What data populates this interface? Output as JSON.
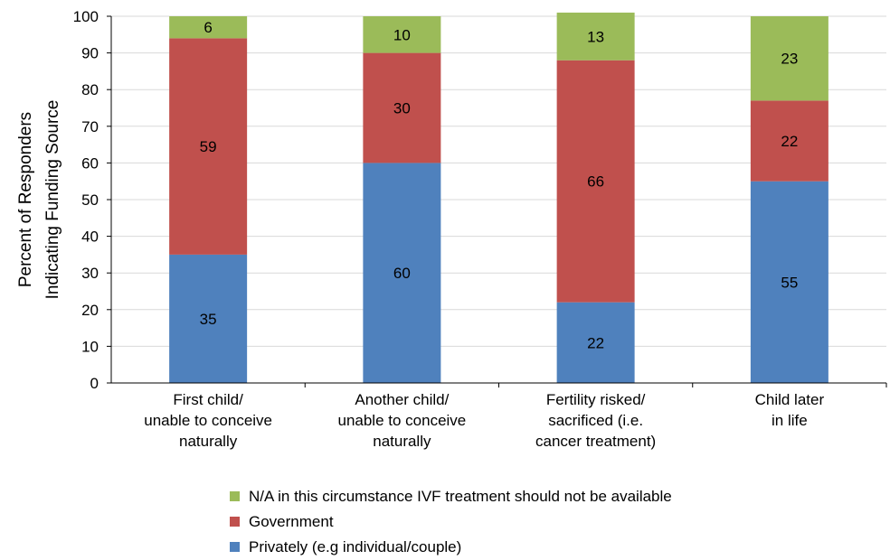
{
  "chart_data": {
    "type": "stacked-bar",
    "ylabel": [
      "Percent of Responders",
      "Indicating Funding Source"
    ],
    "ylim": [
      0,
      100
    ],
    "yticks": [
      0,
      10,
      20,
      30,
      40,
      50,
      60,
      70,
      80,
      90,
      100
    ],
    "grid": true,
    "legend_position": "bottom",
    "categories": [
      [
        "First child/",
        "unable to conceive",
        "naturally"
      ],
      [
        "Another child/",
        "unable to conceive",
        "naturally"
      ],
      [
        "Fertility risked/",
        "sacrificed (i.e.",
        "cancer treatment)"
      ],
      [
        "Child later",
        "in life"
      ]
    ],
    "series": [
      {
        "name": "Privately (e.g individual/couple)",
        "color": "#4F81BD",
        "values": [
          35,
          60,
          22,
          55
        ]
      },
      {
        "name": "Government",
        "color": "#C0504D",
        "values": [
          59,
          30,
          66,
          22
        ]
      },
      {
        "name": "N/A in this circumstance IVF treatment should not be available",
        "color": "#9BBB59",
        "values": [
          6,
          10,
          13,
          23
        ]
      }
    ],
    "legend_order": [
      2,
      1,
      0
    ]
  }
}
